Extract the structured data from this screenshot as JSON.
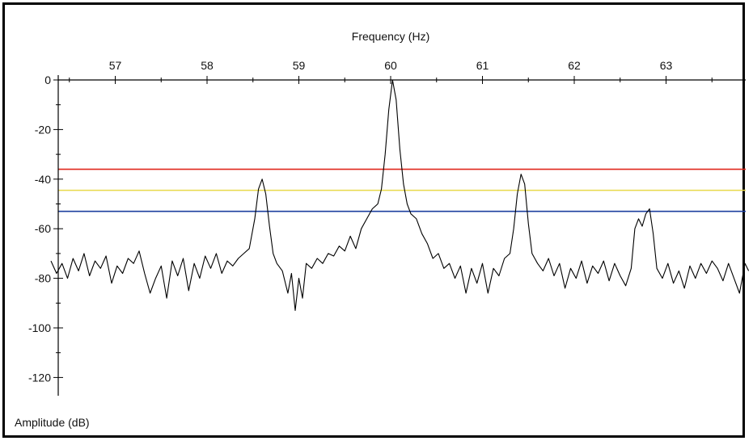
{
  "chart_data": {
    "type": "line",
    "xlabel": "Frequency (Hz)",
    "ylabel": "Amplitude (dB)",
    "xlim": [
      56.3,
      63.9
    ],
    "ylim": [
      -130,
      0
    ],
    "x_ticks": [
      57,
      58,
      59,
      60,
      61,
      62,
      63
    ],
    "x_tick_labels": [
      "57",
      "58",
      "59",
      "60",
      "61",
      "62",
      "63"
    ],
    "y_ticks": [
      0,
      -20,
      -40,
      -60,
      -80,
      -100,
      -120
    ],
    "y_tick_labels": [
      "0",
      "-20",
      "-40",
      "-60",
      "-80",
      "-100",
      "-120"
    ],
    "x_axis_position": "top",
    "grid": false,
    "thresholds": [
      {
        "y": -36,
        "color": "#e0261b"
      },
      {
        "y": -44.5,
        "color": "#e8d94a"
      },
      {
        "y": -53,
        "color": "#1c3f9e"
      }
    ],
    "series": [
      {
        "color": "#000000",
        "points": [
          [
            56.3,
            -73
          ],
          [
            56.36,
            -78
          ],
          [
            56.42,
            -74
          ],
          [
            56.48,
            -80
          ],
          [
            56.54,
            -72
          ],
          [
            56.6,
            -77
          ],
          [
            56.66,
            -70
          ],
          [
            56.72,
            -79
          ],
          [
            56.78,
            -73
          ],
          [
            56.84,
            -76
          ],
          [
            56.9,
            -71
          ],
          [
            56.96,
            -82
          ],
          [
            57.02,
            -75
          ],
          [
            57.08,
            -78
          ],
          [
            57.14,
            -72
          ],
          [
            57.2,
            -74
          ],
          [
            57.26,
            -69
          ],
          [
            57.32,
            -78
          ],
          [
            57.38,
            -86
          ],
          [
            57.44,
            -80
          ],
          [
            57.5,
            -75
          ],
          [
            57.56,
            -88
          ],
          [
            57.62,
            -73
          ],
          [
            57.68,
            -79
          ],
          [
            57.74,
            -72
          ],
          [
            57.8,
            -85
          ],
          [
            57.86,
            -74
          ],
          [
            57.92,
            -80
          ],
          [
            57.98,
            -71
          ],
          [
            58.04,
            -76
          ],
          [
            58.1,
            -70
          ],
          [
            58.16,
            -78
          ],
          [
            58.22,
            -73
          ],
          [
            58.28,
            -75
          ],
          [
            58.34,
            -72
          ],
          [
            58.4,
            -70
          ],
          [
            58.46,
            -68
          ],
          [
            58.52,
            -56
          ],
          [
            58.56,
            -44
          ],
          [
            58.6,
            -40
          ],
          [
            58.64,
            -46
          ],
          [
            58.68,
            -59
          ],
          [
            58.72,
            -70
          ],
          [
            58.76,
            -74
          ],
          [
            58.82,
            -77
          ],
          [
            58.88,
            -86
          ],
          [
            58.92,
            -78
          ],
          [
            58.96,
            -93
          ],
          [
            59.0,
            -80
          ],
          [
            59.04,
            -88
          ],
          [
            59.08,
            -74
          ],
          [
            59.14,
            -76
          ],
          [
            59.2,
            -72
          ],
          [
            59.26,
            -74
          ],
          [
            59.32,
            -70
          ],
          [
            59.38,
            -71
          ],
          [
            59.44,
            -67
          ],
          [
            59.5,
            -69
          ],
          [
            59.56,
            -63
          ],
          [
            59.62,
            -68
          ],
          [
            59.68,
            -60
          ],
          [
            59.74,
            -56
          ],
          [
            59.8,
            -52
          ],
          [
            59.86,
            -50
          ],
          [
            59.9,
            -44
          ],
          [
            59.94,
            -30
          ],
          [
            59.98,
            -12
          ],
          [
            60.02,
            0
          ],
          [
            60.06,
            -8
          ],
          [
            60.1,
            -28
          ],
          [
            60.14,
            -42
          ],
          [
            60.18,
            -50
          ],
          [
            60.22,
            -54
          ],
          [
            60.28,
            -56
          ],
          [
            60.34,
            -62
          ],
          [
            60.4,
            -66
          ],
          [
            60.46,
            -72
          ],
          [
            60.52,
            -70
          ],
          [
            60.58,
            -76
          ],
          [
            60.64,
            -74
          ],
          [
            60.7,
            -80
          ],
          [
            60.76,
            -75
          ],
          [
            60.82,
            -86
          ],
          [
            60.88,
            -76
          ],
          [
            60.94,
            -82
          ],
          [
            61.0,
            -74
          ],
          [
            61.06,
            -86
          ],
          [
            61.12,
            -76
          ],
          [
            61.18,
            -79
          ],
          [
            61.24,
            -72
          ],
          [
            61.3,
            -70
          ],
          [
            61.34,
            -60
          ],
          [
            61.38,
            -46
          ],
          [
            61.42,
            -38
          ],
          [
            61.46,
            -42
          ],
          [
            61.5,
            -58
          ],
          [
            61.54,
            -70
          ],
          [
            61.6,
            -74
          ],
          [
            61.66,
            -77
          ],
          [
            61.72,
            -72
          ],
          [
            61.78,
            -79
          ],
          [
            61.84,
            -74
          ],
          [
            61.9,
            -84
          ],
          [
            61.96,
            -76
          ],
          [
            62.02,
            -80
          ],
          [
            62.08,
            -73
          ],
          [
            62.14,
            -82
          ],
          [
            62.2,
            -75
          ],
          [
            62.26,
            -78
          ],
          [
            62.32,
            -73
          ],
          [
            62.38,
            -81
          ],
          [
            62.44,
            -74
          ],
          [
            62.5,
            -79
          ],
          [
            62.56,
            -83
          ],
          [
            62.62,
            -76
          ],
          [
            62.66,
            -60
          ],
          [
            62.7,
            -56
          ],
          [
            62.74,
            -59
          ],
          [
            62.78,
            -54
          ],
          [
            62.82,
            -52
          ],
          [
            62.86,
            -62
          ],
          [
            62.9,
            -76
          ],
          [
            62.96,
            -80
          ],
          [
            63.02,
            -74
          ],
          [
            63.08,
            -82
          ],
          [
            63.14,
            -77
          ],
          [
            63.2,
            -84
          ],
          [
            63.26,
            -75
          ],
          [
            63.32,
            -80
          ],
          [
            63.38,
            -74
          ],
          [
            63.44,
            -78
          ],
          [
            63.5,
            -73
          ],
          [
            63.56,
            -76
          ],
          [
            63.62,
            -81
          ],
          [
            63.68,
            -74
          ],
          [
            63.74,
            -80
          ],
          [
            63.8,
            -86
          ],
          [
            63.86,
            -74
          ],
          [
            63.9,
            -77
          ]
        ]
      }
    ]
  }
}
